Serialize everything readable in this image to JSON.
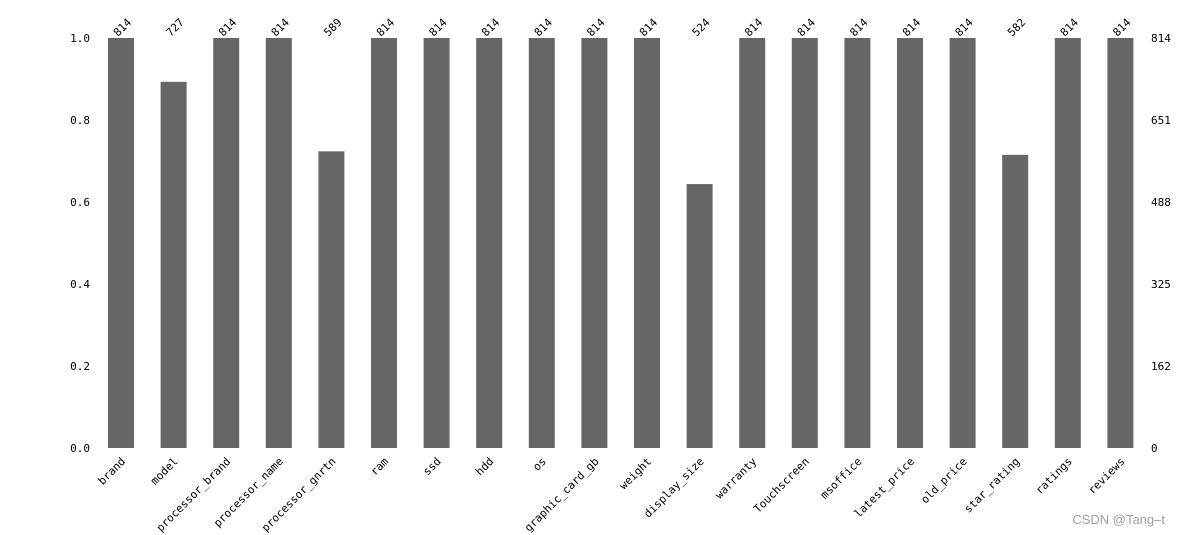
{
  "chart_data": {
    "type": "bar",
    "total": 814,
    "categories": [
      "brand",
      "model",
      "processor_brand",
      "processor_name",
      "processor_gnrtn",
      "ram",
      "ssd",
      "hdd",
      "os",
      "graphic_card_gb",
      "weight",
      "display_size",
      "warranty",
      "Touchscreen",
      "msoffice",
      "latest_price",
      "old_price",
      "star_rating",
      "ratings",
      "reviews"
    ],
    "values": [
      814,
      727,
      814,
      814,
      589,
      814,
      814,
      814,
      814,
      814,
      814,
      524,
      814,
      814,
      814,
      814,
      814,
      582,
      814,
      814
    ],
    "ylim": [
      0,
      1.0
    ],
    "left_ticks": [
      "0.0",
      "0.2",
      "0.4",
      "0.6",
      "0.8",
      "1.0"
    ],
    "right_ticks": [
      "0",
      "162",
      "325",
      "488",
      "651",
      "814"
    ],
    "bar_color": "#666666",
    "grid": false
  },
  "watermark": "CSDN @Tang–t"
}
